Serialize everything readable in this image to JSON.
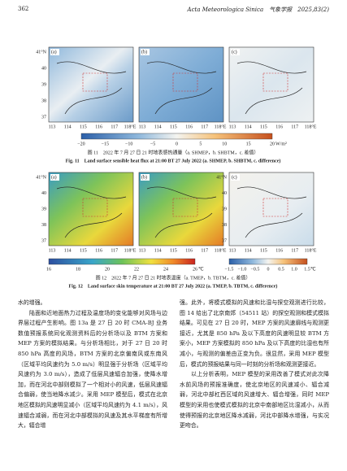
{
  "header": {
    "page_number": "362",
    "journal": "Acta Meteorologica Sinica　气象学报　2025,83(2)"
  },
  "figures": [
    {
      "panels": [
        "(a)",
        "(b)",
        "(c)"
      ],
      "y_labels": [
        "41°N",
        "40",
        "39",
        "38",
        "37"
      ],
      "x_labels": [
        "113",
        "114",
        "115",
        "116",
        "117",
        "118°E"
      ],
      "colorbars": [
        {
          "ticks": [
            "−20",
            "−15",
            "−10",
            "−5",
            "0",
            "5",
            "10",
            "15",
            "20"
          ],
          "unit": "W/m²"
        }
      ],
      "caption_cn": "图 11　2022 年 7 月 27 日 21 时地表感热通量（a. SHMEP，b. SHBTM，c. 差值）",
      "caption_en": "Fig. 11　Land surface sensible heat flux at 21:00 BT 27 July 2022 (a. SHMEP, b. SHBTM, c. difference)"
    },
    {
      "panels": [
        "(a)",
        "(b)",
        "(c)"
      ],
      "y_labels": [
        "41°N",
        "40",
        "39",
        "38",
        "37"
      ],
      "x_labels": [
        "113",
        "114",
        "115",
        "116",
        "117",
        "118°E"
      ],
      "colorbars": [
        {
          "ticks": [
            "16",
            "18",
            "20",
            "22",
            "24",
            "26"
          ],
          "unit": "℃"
        },
        {
          "ticks": [
            "−1.5",
            "−1.0",
            "−0.5",
            "0",
            "0.5",
            "1.0",
            "1.5"
          ],
          "unit": "℃"
        }
      ],
      "caption_cn": "图 12　2022 年 7 月 27 日 21 时地表温度（a. TMEP，b. TBTM，c. 差值）",
      "caption_en": "Fig. 12　Land surface skin temperature at 21:00 BT 27 July 2022 (a. TMEP, b. TBTM, c. difference)"
    }
  ],
  "body": {
    "left": [
      "水的增强。",
      "陆面和近地面热力过程及温度场的变化能够对风场与边界层过程产生影响。图 13a 是 27 日 20 时 CMA-BJ 业务数值预报系统同化观测资料后的分析场以及 BTM 方案和 MEP 方案的模拟结果。与分析场相比，对于 27 日 20 时 850 hPa 高度的风场，BTM 方案的北京偏南风或东南风（区域平均风速约为 5.0 m/s）明显强于分析场（区域平均风速约为 3.0 m/s），造成了低层风速辐合加强，使降水增加，而在河北中部则模拟了一个相对小的风速，低层风速辐合偏弱，使当地降水减少。采用 MEP 模型后，模式在北京地区模拟的风速明显减小（区域平均风速约为 4.1 m/s），风速辐合减弱，而在河北中部模拟的风速及其水平梯度有所增大，辐合增"
    ],
    "right": [
      "强。此外，将模式模拟的风速和比湿与探空观测进行比较，图 14 给出了北京南郊（54511 站）的探空观测和模式模拟结果。可见在 27 日 20 时，MEP 方案的风速廓线与观测更接近，尤其是 850 hPa 及以下高度的风速明显较 BTM 方案小，MEP 方案模拟的 850 hPa 及以下高度的比湿也有所减小，与观测的偏差由正变为负。很显然，采用 MEP 模型后，模式的预报结果与同一时刻的分析场和观测更接近。",
      "以上分析表明，MEP 模型的采用改善了模式对此次降水前风场的预报准确度，使北京地区的风速减小、辐合减弱，河北中部杠西区域的风速增大、辐合增强，同时 MEP 模型的采用也使模式模拟的北京中南部地区比湿减小，从而使得预报的北京地区降水减弱，河北中部降水增强，与实况更吻合。"
    ]
  }
}
